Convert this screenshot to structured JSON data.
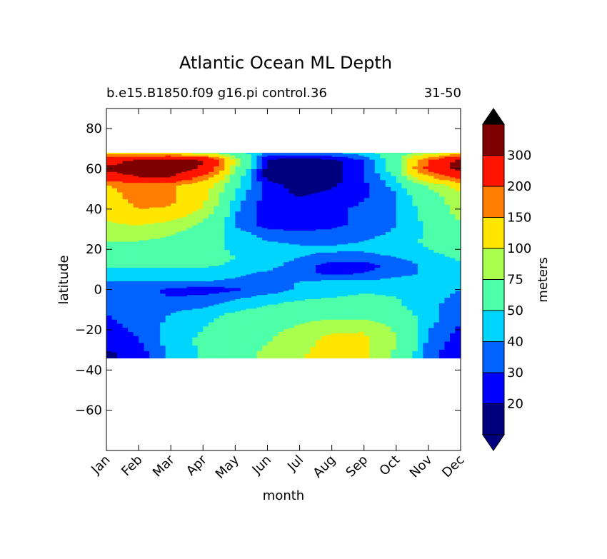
{
  "chart_data": {
    "type": "heatmap",
    "title": "Atlantic Ocean ML Depth",
    "subtitle_left": "b.e15.B1850.f09 g16.pi control.36",
    "subtitle_right": "31-50",
    "xlabel": "month",
    "ylabel": "latitude",
    "x_categories": [
      "Jan",
      "Feb",
      "Mar",
      "Apr",
      "May",
      "Jun",
      "Jul",
      "Aug",
      "Sep",
      "Oct",
      "Nov",
      "Dec"
    ],
    "yticks": [
      80,
      60,
      40,
      20,
      0,
      -20,
      -40,
      -60
    ],
    "ylim": [
      -80,
      90
    ],
    "data_lat_range": [
      -34,
      68
    ],
    "colorbar": {
      "label": "meters",
      "levels": [
        20,
        30,
        40,
        50,
        75,
        100,
        150,
        200,
        300
      ],
      "colors": [
        "#00007f",
        "#0000ff",
        "#0063ff",
        "#00d5ff",
        "#4effaa",
        "#aaff4e",
        "#ffe600",
        "#ff7d00",
        "#ff1400",
        "#7f0000"
      ],
      "extend_low_color": "#00007f",
      "extend_high_color": "#000000"
    },
    "latitudes": [
      68,
      64,
      60,
      56,
      52,
      48,
      44,
      40,
      36,
      32,
      28,
      24,
      20,
      16,
      12,
      8,
      4,
      0,
      -4,
      -8,
      -12,
      -16,
      -20,
      -24,
      -28,
      -32
    ],
    "values": [
      [
        120,
        90,
        85,
        75,
        55,
        40,
        40,
        40,
        45,
        60,
        80,
        110
      ],
      [
        260,
        330,
        360,
        310,
        90,
        15,
        12,
        15,
        30,
        60,
        200,
        330
      ],
      [
        320,
        340,
        360,
        280,
        75,
        15,
        12,
        15,
        30,
        60,
        220,
        340
      ],
      [
        260,
        300,
        300,
        180,
        60,
        15,
        12,
        15,
        30,
        50,
        140,
        230
      ],
      [
        150,
        170,
        160,
        120,
        55,
        25,
        15,
        18,
        28,
        45,
        80,
        120
      ],
      [
        135,
        170,
        160,
        110,
        48,
        25,
        18,
        22,
        28,
        40,
        65,
        95
      ],
      [
        125,
        165,
        160,
        105,
        45,
        25,
        22,
        25,
        30,
        40,
        60,
        90
      ],
      [
        115,
        150,
        145,
        95,
        42,
        25,
        25,
        28,
        32,
        40,
        55,
        85
      ],
      [
        105,
        120,
        110,
        80,
        40,
        25,
        25,
        28,
        32,
        40,
        55,
        80
      ],
      [
        95,
        100,
        90,
        70,
        38,
        25,
        25,
        28,
        32,
        40,
        52,
        72
      ],
      [
        85,
        85,
        78,
        62,
        45,
        35,
        32,
        33,
        36,
        42,
        52,
        65
      ],
      [
        75,
        75,
        70,
        58,
        46,
        40,
        38,
        38,
        40,
        45,
        52,
        60
      ],
      [
        68,
        68,
        64,
        56,
        48,
        44,
        42,
        42,
        42,
        46,
        50,
        55
      ],
      [
        60,
        60,
        58,
        55,
        50,
        46,
        40,
        36,
        35,
        40,
        46,
        52
      ],
      [
        52,
        52,
        52,
        52,
        48,
        44,
        35,
        25,
        26,
        34,
        42,
        48
      ],
      [
        46,
        46,
        46,
        46,
        42,
        38,
        32,
        28,
        30,
        36,
        42,
        45
      ],
      [
        40,
        40,
        40,
        40,
        38,
        36,
        40,
        42,
        42,
        44,
        45,
        42
      ],
      [
        36,
        34,
        28,
        25,
        28,
        34,
        42,
        46,
        48,
        48,
        46,
        40
      ],
      [
        34,
        32,
        30,
        32,
        38,
        44,
        48,
        50,
        52,
        50,
        46,
        36
      ],
      [
        30,
        32,
        34,
        38,
        44,
        50,
        54,
        56,
        56,
        52,
        44,
        32
      ],
      [
        30,
        34,
        40,
        46,
        52,
        58,
        62,
        64,
        62,
        56,
        44,
        30
      ],
      [
        28,
        34,
        42,
        48,
        56,
        64,
        72,
        80,
        80,
        66,
        44,
        30
      ],
      [
        26,
        32,
        44,
        50,
        58,
        68,
        80,
        96,
        98,
        72,
        40,
        28
      ],
      [
        24,
        30,
        44,
        52,
        62,
        72,
        88,
        106,
        104,
        76,
        38,
        26
      ],
      [
        22,
        28,
        44,
        52,
        64,
        76,
        92,
        110,
        108,
        74,
        36,
        24
      ],
      [
        18,
        24,
        42,
        52,
        66,
        80,
        96,
        112,
        108,
        70,
        34,
        22
      ]
    ]
  }
}
